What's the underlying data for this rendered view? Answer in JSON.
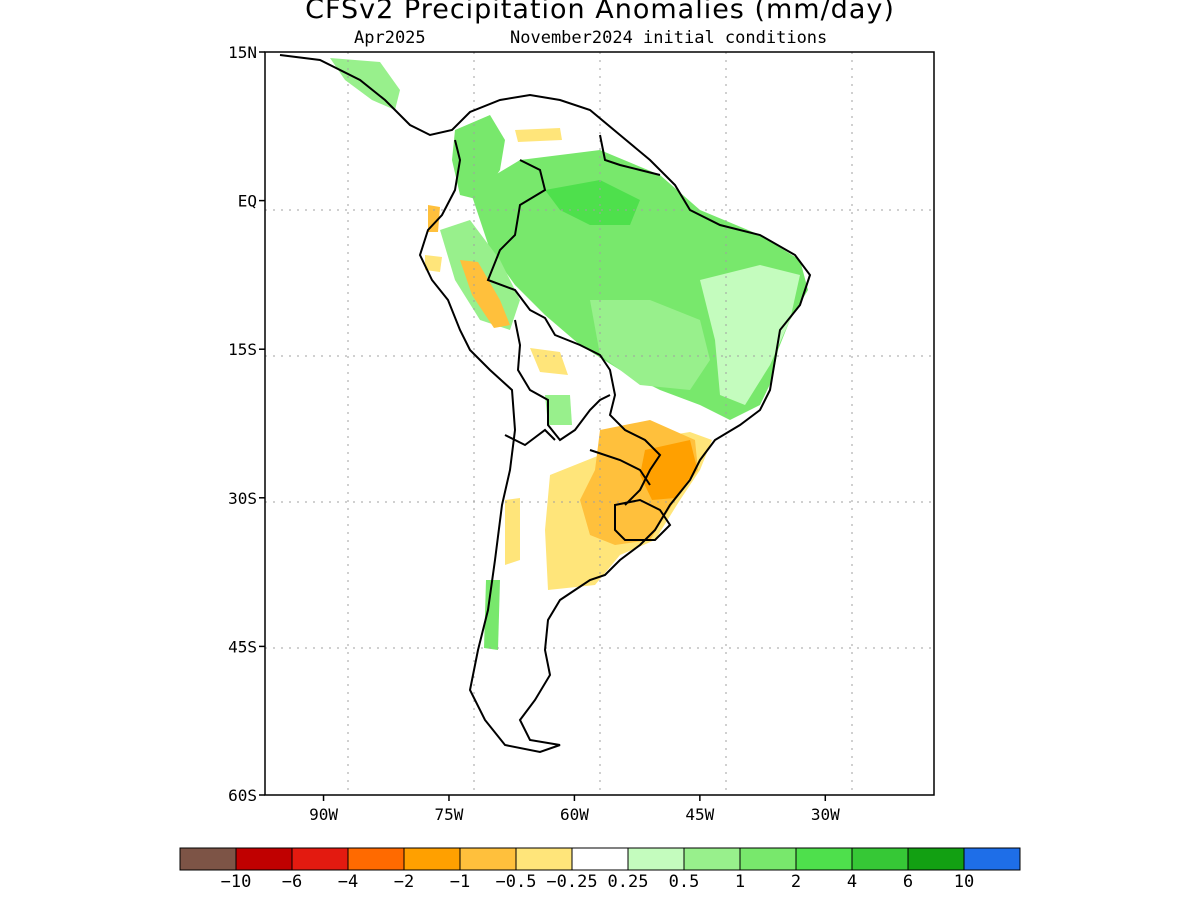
{
  "title": "CFSv2 Precipitation Anomalies (mm/day)",
  "subtitle_left": "Apr2025",
  "subtitle_right": "November2024 initial conditions",
  "map": {
    "lon_range": [
      -97,
      -17
    ],
    "lat_range": [
      -60,
      15
    ],
    "lat_ticks": [
      "15N",
      "EQ",
      "15S",
      "30S",
      "45S",
      "60S"
    ],
    "lon_ticks": [
      "90W",
      "75W",
      "60W",
      "45W",
      "30W"
    ],
    "grid": "dotted"
  },
  "colorbar": {
    "colors": [
      "#7d5446",
      "#c00000",
      "#e31a10",
      "#ff6a00",
      "#ffa000",
      "#ffc03c",
      "#ffe57a",
      "#ffffff",
      "#c4fcbe",
      "#98f08c",
      "#78e86c",
      "#4ee04c",
      "#36c836",
      "#12a012",
      "#1e6ee8"
    ],
    "labels": [
      "−10",
      "−6",
      "−4",
      "−2",
      "−1",
      "−0.5",
      "−0.25",
      "0.25",
      "0.5",
      "1",
      "2",
      "4",
      "6",
      "10"
    ]
  }
}
